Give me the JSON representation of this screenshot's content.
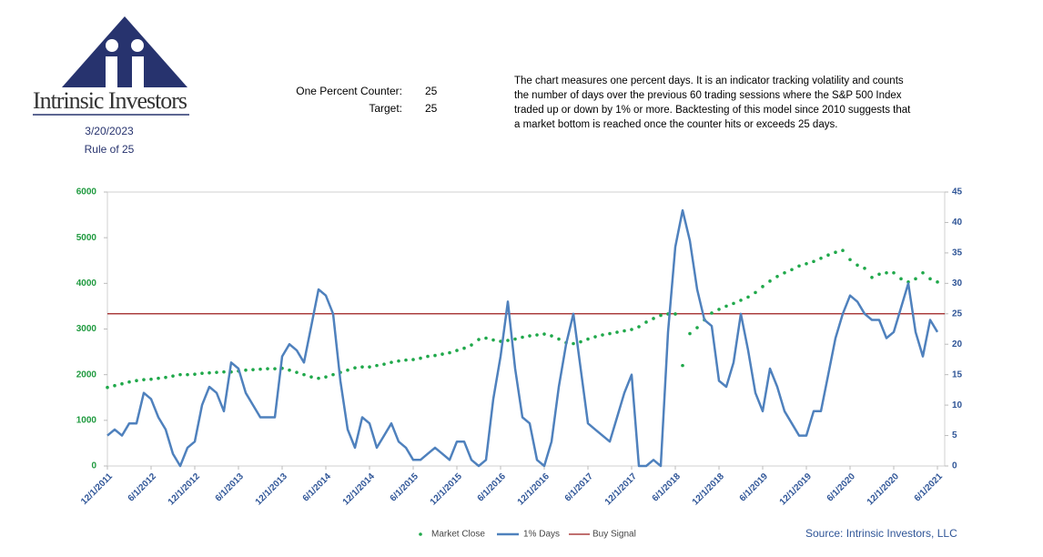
{
  "header": {
    "brand": "Intrinsic Investors",
    "date": "3/20/2023",
    "subtitle": "Rule of 25",
    "counter_label": "One Percent Counter:",
    "counter_value": 25,
    "target_label": "Target:",
    "target_value": 25,
    "description": [
      "The chart measures one percent days.  It is an indicator tracking volatility and counts",
      "the number of days over the previous 60 trading sessions where the S&P 500 Index",
      "traded up or down by 1% or more. Backtesting of this model since 2010 suggests that",
      "a market bottom is reached once the counter hits or exceeds 25 days."
    ],
    "source": "Source: Intrinsic Investors, LLC"
  },
  "chart_data": {
    "type": "line",
    "x": [
      "12/1/2011",
      "1/1/2012",
      "2/1/2012",
      "3/1/2012",
      "4/1/2012",
      "5/1/2012",
      "6/1/2012",
      "7/1/2012",
      "8/1/2012",
      "9/1/2012",
      "10/1/2012",
      "11/1/2012",
      "12/1/2012",
      "1/1/2013",
      "2/1/2013",
      "3/1/2013",
      "4/1/2013",
      "5/1/2013",
      "6/1/2013",
      "7/1/2013",
      "8/1/2013",
      "9/1/2013",
      "10/1/2013",
      "11/1/2013",
      "12/1/2013",
      "1/1/2014",
      "2/1/2014",
      "3/1/2014",
      "4/1/2014",
      "5/1/2014",
      "6/1/2014",
      "7/1/2014",
      "8/1/2014",
      "9/1/2014",
      "10/1/2014",
      "11/1/2014",
      "12/1/2014",
      "1/1/2015",
      "2/1/2015",
      "3/1/2015",
      "4/1/2015",
      "5/1/2015",
      "6/1/2015",
      "7/1/2015",
      "8/1/2015",
      "9/1/2015",
      "10/1/2015",
      "11/1/2015",
      "12/1/2015",
      "1/1/2016",
      "2/1/2016",
      "3/1/2016",
      "4/1/2016",
      "5/1/2016",
      "6/1/2016",
      "7/1/2016",
      "8/1/2016",
      "9/1/2016",
      "10/1/2016",
      "11/1/2016",
      "12/1/2016",
      "1/1/2017",
      "2/1/2017",
      "3/1/2017",
      "4/1/2017",
      "5/1/2017",
      "6/1/2017",
      "7/1/2017",
      "8/1/2017",
      "9/1/2017",
      "10/1/2017",
      "11/1/2017",
      "12/1/2017",
      "1/1/2018",
      "2/1/2018",
      "3/1/2018",
      "4/1/2018",
      "5/1/2018",
      "6/1/2018",
      "7/1/2018",
      "8/1/2018",
      "9/1/2018",
      "10/1/2018",
      "11/1/2018",
      "12/1/2018",
      "1/1/2019",
      "2/1/2019",
      "3/1/2019",
      "4/1/2019",
      "5/1/2019",
      "6/1/2019",
      "7/1/2019",
      "8/1/2019",
      "9/1/2019",
      "10/1/2019",
      "11/1/2019",
      "12/1/2019",
      "1/1/2020",
      "2/1/2020",
      "3/1/2020",
      "4/1/2020",
      "5/1/2020",
      "6/1/2020",
      "7/1/2020",
      "8/1/2020",
      "9/1/2020",
      "10/1/2020",
      "11/1/2020",
      "12/1/2020",
      "1/1/2021",
      "2/1/2021",
      "3/1/2021",
      "4/1/2021",
      "5/1/2021",
      "6/1/2021"
    ],
    "series": [
      {
        "name": "Market Close",
        "color": "#1fa84a",
        "style": "dots",
        "values": [
          1720,
          1760,
          1800,
          1840,
          1870,
          1890,
          1900,
          1920,
          1940,
          1970,
          2000,
          2000,
          2010,
          2030,
          2040,
          2050,
          2060,
          2060,
          2080,
          2100,
          2110,
          2120,
          2130,
          2130,
          2140,
          2100,
          2050,
          2000,
          1950,
          1920,
          1950,
          2000,
          2050,
          2100,
          2150,
          2170,
          2170,
          2200,
          2230,
          2270,
          2300,
          2320,
          2330,
          2360,
          2400,
          2420,
          2450,
          2480,
          2530,
          2580,
          2650,
          2770,
          2800,
          2760,
          2730,
          2750,
          2780,
          2820,
          2850,
          2870,
          2890,
          2850,
          2780,
          2700,
          2680,
          2720,
          2780,
          2830,
          2870,
          2900,
          2930,
          2960,
          2990,
          3050,
          3150,
          3230,
          3300,
          3330,
          3330,
          2200,
          2900,
          3030,
          3200,
          3350,
          3430,
          3500,
          3560,
          3630,
          3700,
          3800,
          3930,
          4050,
          4150,
          4230,
          4300,
          4380,
          4430,
          4480,
          4550,
          4620,
          4680,
          4720,
          4520,
          4400,
          4330,
          4130,
          4200,
          4230,
          4230,
          4100,
          4030,
          4100,
          4230,
          4100,
          4030
        ]
      },
      {
        "name": "1% Days",
        "color": "#4f81bd",
        "style": "line",
        "axis": "y2",
        "values": [
          5,
          6,
          5,
          7,
          7,
          12,
          11,
          8,
          6,
          2,
          0,
          3,
          4,
          10,
          13,
          12,
          9,
          17,
          16,
          12,
          10,
          8,
          8,
          8,
          18,
          20,
          19,
          17,
          23,
          29,
          28,
          25,
          14,
          6,
          3,
          8,
          7,
          3,
          5,
          7,
          4,
          3,
          1,
          1,
          2,
          3,
          2,
          1,
          4,
          4,
          1,
          0,
          1,
          11,
          18,
          27,
          16,
          8,
          7,
          1,
          0,
          4,
          13,
          20,
          25,
          16,
          7,
          6,
          5,
          4,
          8,
          12,
          15,
          0,
          0,
          1,
          0,
          22,
          36,
          42,
          37,
          29,
          24,
          23,
          14,
          13,
          17,
          25,
          19,
          12,
          9,
          16,
          13,
          9,
          7,
          5,
          5,
          9,
          9,
          15,
          21,
          25,
          28,
          27,
          25,
          24,
          24,
          21,
          22,
          26,
          30,
          22,
          18,
          24,
          22
        ]
      }
    ],
    "buy_signal": {
      "name": "Buy Signal",
      "color": "#9b1b1b",
      "axis": "y2",
      "value": 25
    },
    "xlim": [
      "12/1/2011",
      "7/1/2021"
    ],
    "xticks": [
      "12/1/2011",
      "6/1/2012",
      "12/1/2012",
      "6/1/2013",
      "12/1/2013",
      "6/1/2014",
      "12/1/2014",
      "6/1/2015",
      "12/1/2015",
      "6/1/2016",
      "12/1/2016",
      "6/1/2017",
      "12/1/2017",
      "6/1/2018",
      "12/1/2018",
      "6/1/2019",
      "12/1/2019",
      "6/1/2020",
      "12/1/2020",
      "6/1/2021"
    ],
    "ylim": [
      0,
      6000
    ],
    "yticks": [
      0,
      1000,
      2000,
      3000,
      4000,
      5000,
      6000
    ],
    "y2lim": [
      0,
      45
    ],
    "y2ticks": [
      0,
      5,
      10,
      15,
      20,
      25,
      30,
      35,
      40,
      45
    ]
  }
}
